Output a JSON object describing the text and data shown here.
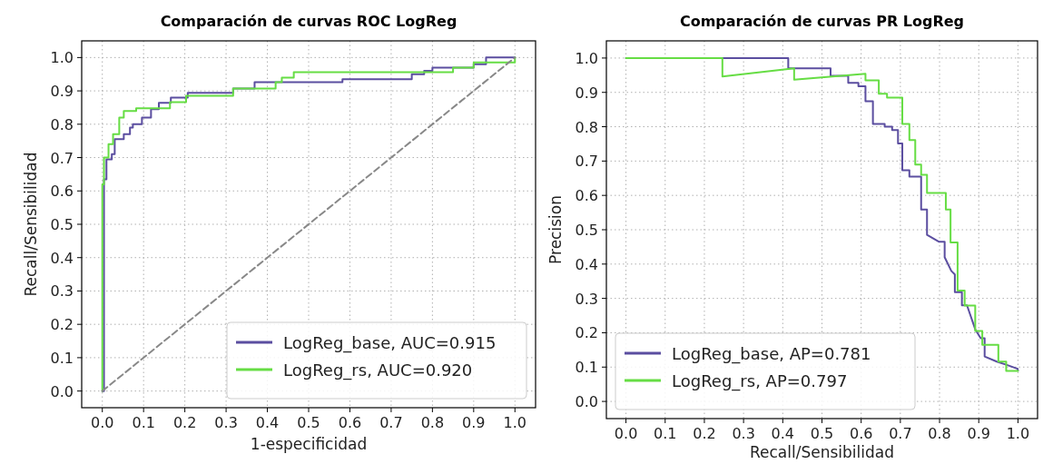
{
  "chart_data": [
    {
      "type": "line",
      "title": "Comparación de curvas ROC LogReg",
      "xlabel": "1-especificidad",
      "ylabel": "Recall/Sensibilidad",
      "xlim": [
        -0.05,
        1.05
      ],
      "ylim": [
        -0.05,
        1.05
      ],
      "xticks": [
        {
          "value": 0,
          "label": "0.0"
        },
        {
          "value": 0.1,
          "label": "0.1"
        },
        {
          "value": 0.2,
          "label": "0.2"
        },
        {
          "value": 0.3,
          "label": "0.3"
        },
        {
          "value": 0.4,
          "label": "0.4"
        },
        {
          "value": 0.5,
          "label": "0.5"
        },
        {
          "value": 0.6,
          "label": "0.6"
        },
        {
          "value": 0.7,
          "label": "0.7"
        },
        {
          "value": 0.8,
          "label": "0.8"
        },
        {
          "value": 0.9,
          "label": "0.9"
        },
        {
          "value": 1,
          "label": "1.0"
        }
      ],
      "yticks": [
        {
          "value": 0,
          "label": "0.0"
        },
        {
          "value": 0.1,
          "label": "0.1"
        },
        {
          "value": 0.2,
          "label": "0.2"
        },
        {
          "value": 0.3,
          "label": "0.3"
        },
        {
          "value": 0.4,
          "label": "0.4"
        },
        {
          "value": 0.5,
          "label": "0.5"
        },
        {
          "value": 0.6,
          "label": "0.6"
        },
        {
          "value": 0.7,
          "label": "0.7"
        },
        {
          "value": 0.8,
          "label": "0.8"
        },
        {
          "value": 0.9,
          "label": "0.9"
        },
        {
          "value": 1,
          "label": "1.0"
        }
      ],
      "grid": true,
      "legend": "bottom right",
      "series": [
        {
          "type": "step",
          "name": "LogReg_base, AUC=0.915",
          "color": "#5b4ea0",
          "x": [
            0,
            0.004,
            0.004,
            0.01,
            0.023,
            0.03,
            0.052,
            0.067,
            0.074,
            0.096,
            0.118,
            0.137,
            0.166,
            0.207,
            0.317,
            0.369,
            0.582,
            0.75,
            0.78,
            0.8,
            0.9,
            0.93,
            1.0
          ],
          "values": [
            0,
            0.567,
            0.635,
            0.695,
            0.71,
            0.755,
            0.77,
            0.79,
            0.8,
            0.82,
            0.845,
            0.864,
            0.88,
            0.894,
            0.907,
            0.926,
            0.935,
            0.95,
            0.96,
            0.97,
            0.98,
            1.0,
            1.0
          ]
        },
        {
          "type": "step",
          "name": "LogReg_rs, AUC=0.920",
          "color": "#66dd44",
          "x": [
            0,
            0,
            0.004,
            0.015,
            0.026,
            0.041,
            0.052,
            0.082,
            0.164,
            0.203,
            0.317,
            0.42,
            0.435,
            0.464,
            0.85,
            0.9,
            1.0
          ],
          "values": [
            0,
            0.62,
            0.7,
            0.74,
            0.77,
            0.82,
            0.84,
            0.848,
            0.866,
            0.885,
            0.907,
            0.926,
            0.94,
            0.956,
            0.97,
            0.985,
            1.0
          ]
        },
        {
          "color": "#888888",
          "line_style": "dashed",
          "x": [
            0,
            1
          ],
          "values": [
            0,
            1
          ]
        }
      ]
    },
    {
      "type": "line",
      "title": "Comparación de curvas PR LogReg",
      "xlabel": "Recall/Sensibilidad",
      "ylabel": "Precision",
      "xlim": [
        -0.05,
        1.05
      ],
      "ylim": [
        -0.05,
        1.05
      ],
      "xticks": [
        {
          "value": 0,
          "label": "0.0"
        },
        {
          "value": 0.1,
          "label": "0.1"
        },
        {
          "value": 0.2,
          "label": "0.2"
        },
        {
          "value": 0.3,
          "label": "0.3"
        },
        {
          "value": 0.4,
          "label": "0.4"
        },
        {
          "value": 0.5,
          "label": "0.5"
        },
        {
          "value": 0.6,
          "label": "0.6"
        },
        {
          "value": 0.7,
          "label": "0.7"
        },
        {
          "value": 0.8,
          "label": "0.8"
        },
        {
          "value": 0.9,
          "label": "0.9"
        },
        {
          "value": 1,
          "label": "1.0"
        }
      ],
      "yticks": [
        {
          "value": 0,
          "label": "0.0"
        },
        {
          "value": 0.1,
          "label": "0.1"
        },
        {
          "value": 0.2,
          "label": "0.2"
        },
        {
          "value": 0.3,
          "label": "0.3"
        },
        {
          "value": 0.4,
          "label": "0.4"
        },
        {
          "value": 0.5,
          "label": "0.5"
        },
        {
          "value": 0.6,
          "label": "0.6"
        },
        {
          "value": 0.7,
          "label": "0.7"
        },
        {
          "value": 0.8,
          "label": "0.8"
        },
        {
          "value": 0.9,
          "label": "0.9"
        },
        {
          "value": 1,
          "label": "1.0"
        }
      ],
      "grid": true,
      "legend": "bottom left",
      "series": [
        {
          "name": "LogReg_base, AP=0.781",
          "color": "#5b4ea0",
          "x": [
            0,
            0.414,
            0.414,
            0.522,
            0.522,
            0.567,
            0.567,
            0.593,
            0.593,
            0.611,
            0.611,
            0.63,
            0.63,
            0.66,
            0.66,
            0.679,
            0.679,
            0.694,
            0.694,
            0.705,
            0.705,
            0.723,
            0.723,
            0.753,
            0.753,
            0.768,
            0.768,
            0.798,
            0.813,
            0.813,
            0.83,
            0.839,
            0.839,
            0.857,
            0.857,
            0.87,
            0.891,
            0.905,
            0.915,
            0.915,
            0.946,
            0.97,
            0.999,
            1.0
          ],
          "values": [
            1,
            1,
            0.97,
            0.97,
            0.948,
            0.948,
            0.928,
            0.928,
            0.918,
            0.918,
            0.874,
            0.874,
            0.808,
            0.808,
            0.8,
            0.8,
            0.79,
            0.79,
            0.751,
            0.751,
            0.673,
            0.673,
            0.655,
            0.655,
            0.559,
            0.559,
            0.485,
            0.465,
            0.465,
            0.42,
            0.38,
            0.37,
            0.318,
            0.318,
            0.28,
            0.28,
            0.21,
            0.184,
            0.184,
            0.131,
            0.116,
            0.107,
            0.095,
            0.09
          ]
        },
        {
          "name": "LogReg_rs, AP=0.797",
          "color": "#66dd44",
          "x": [
            0,
            0.246,
            0.246,
            0.429,
            0.429,
            0.611,
            0.611,
            0.645,
            0.645,
            0.666,
            0.666,
            0.705,
            0.705,
            0.723,
            0.723,
            0.738,
            0.738,
            0.753,
            0.753,
            0.768,
            0.768,
            0.816,
            0.816,
            0.828,
            0.828,
            0.846,
            0.846,
            0.864,
            0.864,
            0.891,
            0.891,
            0.909,
            0.909,
            0.95,
            0.95,
            0.97,
            0.97,
            1.0
          ],
          "values": [
            1,
            1,
            0.946,
            0.97,
            0.937,
            0.954,
            0.935,
            0.935,
            0.896,
            0.896,
            0.885,
            0.885,
            0.808,
            0.808,
            0.761,
            0.761,
            0.69,
            0.69,
            0.66,
            0.66,
            0.607,
            0.607,
            0.559,
            0.559,
            0.463,
            0.463,
            0.323,
            0.323,
            0.279,
            0.279,
            0.205,
            0.205,
            0.165,
            0.165,
            0.116,
            0.116,
            0.089,
            0.089
          ]
        }
      ]
    }
  ]
}
